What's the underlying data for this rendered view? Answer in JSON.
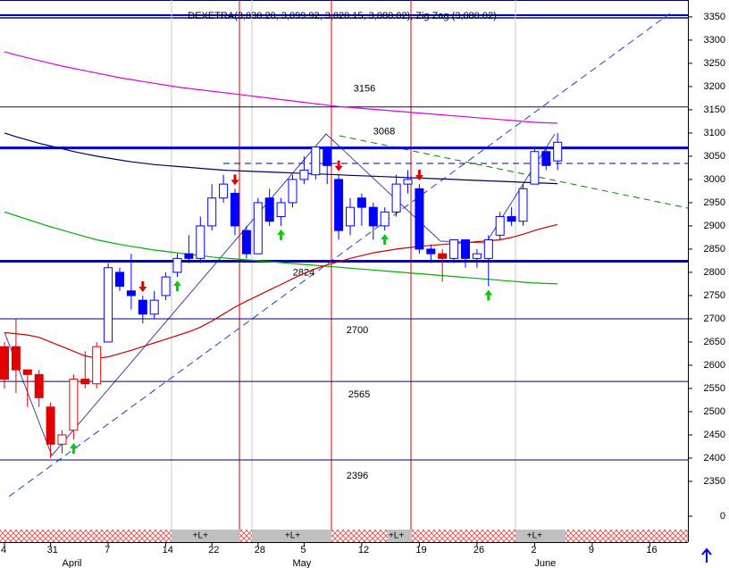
{
  "chart_data": {
    "type": "candlestick",
    "title": "DEXETRA(3,030.20, 3,099.92, 3,020.15, 3,080.02), Zig Zag (3,080.02)",
    "categories": [
      "4",
      null,
      null,
      null,
      "31",
      null,
      null,
      null,
      null,
      "7",
      null,
      null,
      null,
      null,
      "14",
      null,
      null,
      null,
      "22",
      null,
      null,
      null,
      "28",
      null,
      null,
      null,
      "5",
      null,
      null,
      null,
      null,
      "12",
      null,
      null,
      null,
      null,
      "19",
      null,
      null,
      null,
      null,
      "26",
      null,
      null,
      null,
      null,
      "2",
      null,
      null,
      null,
      null,
      "9",
      null,
      null,
      null,
      null,
      "16"
    ],
    "month_labels": [
      null,
      null,
      null,
      null,
      null,
      "April",
      null,
      null,
      null,
      null,
      null,
      null,
      null,
      null,
      null,
      null,
      null,
      null,
      null,
      null,
      null,
      null,
      null,
      null,
      null,
      "May",
      null,
      null,
      null,
      null,
      null,
      null,
      null,
      null,
      null,
      null,
      null,
      null,
      null,
      null,
      null,
      null,
      null,
      null,
      null,
      null,
      "June",
      null,
      null,
      null,
      null,
      null,
      null,
      null,
      null,
      null,
      null
    ],
    "session_labels": [
      null,
      null,
      null,
      null,
      null,
      null,
      null,
      null,
      null,
      null,
      null,
      null,
      null,
      null,
      null,
      null,
      null,
      "+L+",
      null,
      null,
      null,
      null,
      null,
      null,
      null,
      "+L+",
      null,
      null,
      null,
      null,
      null,
      null,
      null,
      null,
      "+L+",
      null,
      null,
      null,
      null,
      null,
      null,
      null,
      null,
      null,
      null,
      null,
      "+L+",
      null,
      null,
      null,
      null,
      null,
      null,
      null,
      null,
      null,
      null
    ],
    "open": [
      2640,
      2640,
      2590,
      2580,
      2510,
      2430,
      2460,
      2570,
      2560,
      2650,
      2800,
      2760,
      2740,
      2710,
      2750,
      2800,
      2840,
      2830,
      2900,
      2960,
      2970,
      2890,
      2840,
      2960,
      2920,
      2950,
      3000,
      3010,
      3070,
      3000,
      2900,
      2960,
      2940,
      2900,
      2930,
      2990,
      2980,
      2850,
      2840,
      2830,
      2870,
      2830,
      2830,
      2880,
      2920,
      2910,
      2990,
      3060,
      3040,
      null,
      null,
      null,
      null,
      null,
      null,
      null,
      null
    ],
    "high": [
      2650,
      2700,
      2590,
      2590,
      2520,
      2460,
      2580,
      2630,
      2650,
      2820,
      2810,
      2840,
      2750,
      2760,
      2800,
      2840,
      2880,
      2920,
      2990,
      3010,
      2980,
      2900,
      2960,
      2980,
      2960,
      3010,
      3050,
      3070,
      3070,
      3010,
      2960,
      2970,
      2950,
      2940,
      3010,
      3020,
      2990,
      2860,
      2850,
      2870,
      2870,
      2850,
      2880,
      2930,
      2940,
      2990,
      3070,
      3070,
      3100,
      null,
      null,
      null,
      null,
      null,
      null,
      null,
      null
    ],
    "low": [
      2550,
      2540,
      2510,
      2510,
      2400,
      2410,
      2440,
      2550,
      2550,
      2650,
      2760,
      2720,
      2690,
      2700,
      2740,
      2790,
      2820,
      2820,
      2890,
      2950,
      2880,
      2830,
      2840,
      2900,
      2900,
      2940,
      2990,
      3000,
      2990,
      2870,
      2880,
      2900,
      2870,
      2890,
      2920,
      2970,
      2840,
      2820,
      2780,
      2820,
      2810,
      2810,
      2770,
      2870,
      2900,
      2900,
      2990,
      3020,
      3020,
      null,
      null,
      null,
      null,
      null,
      null,
      null,
      null
    ],
    "close": [
      2570,
      2590,
      2580,
      2530,
      2430,
      2450,
      2570,
      2560,
      2640,
      2810,
      2770,
      2750,
      2710,
      2740,
      2790,
      2830,
      2830,
      2900,
      2960,
      2990,
      2900,
      2840,
      2950,
      2910,
      2950,
      3000,
      3020,
      3070,
      3030,
      2890,
      2940,
      2940,
      2900,
      2930,
      2990,
      3000,
      2850,
      2840,
      2830,
      2870,
      2830,
      2840,
      2870,
      2920,
      2910,
      2980,
      3060,
      3030,
      3080,
      null,
      null,
      null,
      null,
      null,
      null,
      null,
      null
    ],
    "candle_colors": [
      "#e00000",
      "#e00000",
      "#e00000",
      "#e00000",
      "#e00000",
      "#e00000",
      "#e00000",
      "#e00000",
      "#e00000",
      "#0000ff",
      "#0000ff",
      "#0000ff",
      "#0000ff",
      "#0000ff",
      "#0000ff",
      "#0000ff",
      "#0000ff",
      "#0000ff",
      "#0000ff",
      "#0000ff",
      "#0000ff",
      "#0000ff",
      "#0000ff",
      "#0000ff",
      "#0000ff",
      "#0000ff",
      "#0000ff",
      "#0000ff",
      "#0000ff",
      "#0000ff",
      "#0000ff",
      "#0000ff",
      "#0000ff",
      "#0000ff",
      "#0000ff",
      "#0000ff",
      "#0000ff",
      "#0000ff",
      "#e00000",
      "#0000ff",
      "#0000ff",
      "#0000ff",
      "#0000ff",
      "#0000ff",
      "#0000ff",
      "#0000ff",
      "#0000ff",
      "#0000ff",
      "#0000ff",
      null,
      null,
      null,
      null,
      null,
      null,
      null,
      null
    ],
    "series": [
      {
        "color": "#e000e0",
        "values": [
          3275,
          3268,
          3262,
          3256,
          3250,
          3244,
          3239,
          3234,
          3229,
          3224,
          3219,
          3215,
          3211,
          3207,
          3203,
          3199,
          3196,
          3193,
          3190,
          3187,
          3184,
          3181,
          3178,
          3175,
          3172,
          3169,
          3166,
          3163,
          3160,
          3157,
          3155,
          3153,
          3151,
          3149,
          3147,
          3145,
          3143,
          3141,
          3139,
          3137,
          3135,
          3133,
          3131,
          3129,
          3127,
          3125,
          3123,
          3122,
          3121,
          null,
          null,
          null,
          null,
          null,
          null,
          null,
          null
        ]
      },
      {
        "color": "#000060",
        "values": [
          3100,
          3092,
          3085,
          3078,
          3072,
          3066,
          3060,
          3055,
          3050,
          3046,
          3042,
          3038,
          3035,
          3032,
          3030,
          3028,
          3026,
          3024,
          3022,
          3020,
          3019,
          3018,
          3017,
          3016,
          3015,
          3014,
          3013,
          3012,
          3011,
          3010,
          3009,
          3008,
          3007,
          3006,
          3005,
          3004,
          3003,
          3002,
          3001,
          3000,
          2999,
          2998,
          2997,
          2996,
          2995,
          2994,
          2993,
          2992,
          2991,
          null,
          null,
          null,
          null,
          null,
          null,
          null,
          null
        ]
      },
      {
        "color": "#00b000",
        "values": [
          2930,
          2922,
          2914,
          2906,
          2898,
          2891,
          2884,
          2877,
          2870,
          2865,
          2860,
          2856,
          2852,
          2848,
          2845,
          2842,
          2839,
          2836,
          2833,
          2831,
          2829,
          2827,
          2825,
          2823,
          2821,
          2819,
          2817,
          2815,
          2813,
          2811,
          2809,
          2807,
          2805,
          2803,
          2801,
          2799,
          2797,
          2795,
          2793,
          2791,
          2789,
          2787,
          2785,
          2783,
          2781,
          2779,
          2777,
          2776,
          2775,
          null,
          null,
          null,
          null,
          null,
          null,
          null,
          null
        ]
      },
      {
        "color": "#d00000",
        "values": [
          2670,
          2668,
          2665,
          2660,
          2650,
          2640,
          2630,
          2620,
          2615,
          2618,
          2625,
          2632,
          2640,
          2648,
          2656,
          2664,
          2672,
          2682,
          2695,
          2710,
          2725,
          2738,
          2750,
          2762,
          2774,
          2786,
          2798,
          2808,
          2816,
          2823,
          2830,
          2836,
          2842,
          2846,
          2850,
          2853,
          2856,
          2858,
          2860,
          2862,
          2864,
          2866,
          2868,
          2870,
          2875,
          2882,
          2890,
          2897,
          2903,
          null,
          null,
          null,
          null,
          null,
          null,
          null,
          null
        ]
      }
    ],
    "levels": [
      3156,
      3068,
      2824,
      2700,
      2565,
      2396
    ],
    "ylim": [
      2248,
      3371
    ],
    "yticks": [
      2350,
      2400,
      2450,
      2500,
      2550,
      2600,
      2650,
      2700,
      2750,
      2800,
      2850,
      2900,
      2950,
      3000,
      3050,
      3100,
      3150,
      3200,
      3250,
      3300,
      3350
    ],
    "volume_yticks": [
      0
    ]
  }
}
